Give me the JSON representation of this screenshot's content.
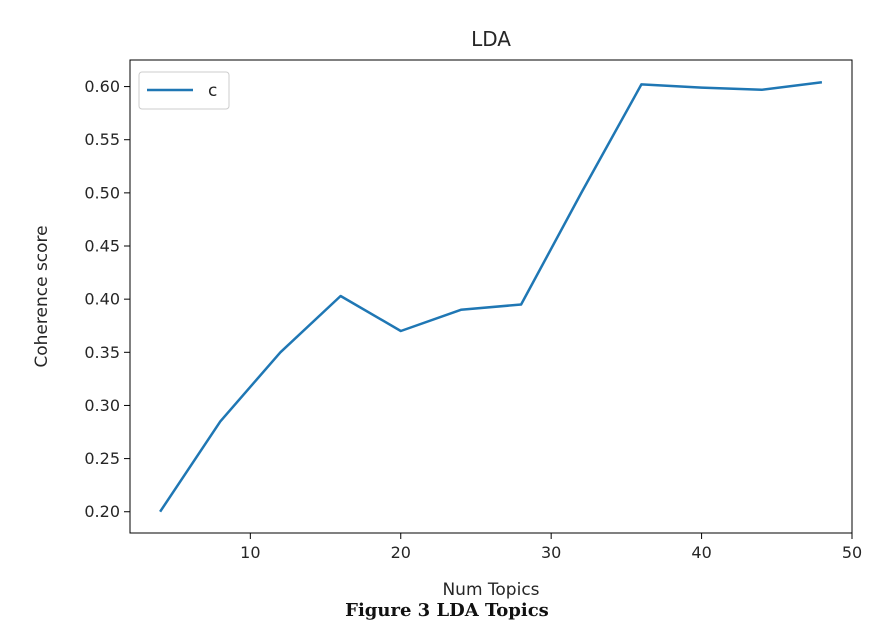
{
  "chart_data": {
    "type": "line",
    "title": "LDA",
    "xlabel": "Num Topics",
    "ylabel": "Coherence score",
    "xlim": [
      2,
      50
    ],
    "ylim": [
      0.18,
      0.625
    ],
    "xticks": [
      10,
      20,
      30,
      40,
      50
    ],
    "yticks": [
      0.2,
      0.25,
      0.3,
      0.35,
      0.4,
      0.45,
      0.5,
      0.55,
      0.6
    ],
    "grid": false,
    "legend_position": "top-left",
    "series": [
      {
        "name": "c",
        "color": "#1f77b4",
        "x": [
          4,
          8,
          12,
          16,
          20,
          24,
          28,
          32,
          36,
          40,
          44,
          48
        ],
        "y": [
          0.2,
          0.285,
          0.35,
          0.403,
          0.37,
          0.39,
          0.395,
          0.5,
          0.602,
          0.599,
          0.597,
          0.604
        ]
      }
    ]
  },
  "caption": "Figure 3 LDA Topics"
}
